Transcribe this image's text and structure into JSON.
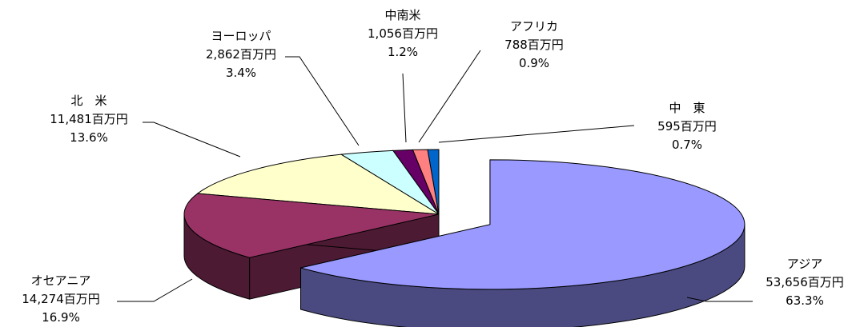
{
  "chart_data": {
    "type": "pie",
    "title": "",
    "unit_suffix": "百万円",
    "three_d": true,
    "exploded": true,
    "slices": [
      {
        "name": "アジア",
        "value": "53,656",
        "percent": "63.3%",
        "top_color": "#9999ff",
        "side_color": "#4a4a80"
      },
      {
        "name": "オセアニア",
        "value": "14,274",
        "percent": "16.9%",
        "top_color": "#993366",
        "side_color": "#4d1a33"
      },
      {
        "name": "北　米",
        "value": "11,481",
        "percent": "13.6%",
        "top_color": "#ffffcc",
        "side_color": "#808066"
      },
      {
        "name": "ヨーロッパ",
        "value": "2,862",
        "percent": "3.4%",
        "top_color": "#ccffff",
        "side_color": "#668080"
      },
      {
        "name": "中南米",
        "value": "1,056",
        "percent": "1.2%",
        "top_color": "#660066",
        "side_color": "#330033"
      },
      {
        "name": "アフリカ",
        "value": "788",
        "percent": "0.9%",
        "top_color": "#ff8080",
        "side_color": "#804040"
      },
      {
        "name": "中　東",
        "value": "595",
        "percent": "0.7%",
        "top_color": "#0066cc",
        "side_color": "#003366"
      }
    ]
  }
}
